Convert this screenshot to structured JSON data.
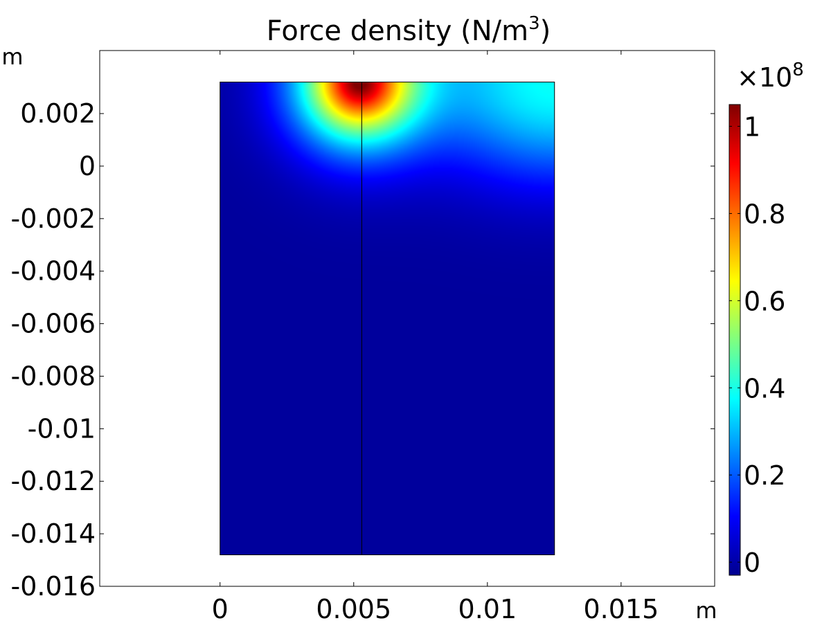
{
  "chart_data": {
    "type": "heatmap",
    "title": "Force density (N/m³)",
    "title_main": "Force density (N/m",
    "title_sup": "3",
    "title_end": ")",
    "xlabel": "m",
    "ylabel": "m",
    "xlim": [
      -0.0045,
      0.0185
    ],
    "ylim": [
      -0.016,
      0.0044
    ],
    "x_ticks": [
      0,
      0.005,
      0.01,
      0.015
    ],
    "x_tick_labels": [
      "0",
      "0.005",
      "0.01",
      "0.015"
    ],
    "y_ticks": [
      0.002,
      0,
      -0.002,
      -0.004,
      -0.006,
      -0.008,
      -0.01,
      -0.012,
      -0.014,
      -0.016
    ],
    "y_tick_labels": [
      "0.002",
      "0",
      "-0.002",
      "-0.004",
      "-0.006",
      "-0.008",
      "-0.01",
      "-0.012",
      "-0.014",
      "-0.016"
    ],
    "domain": {
      "x": [
        0,
        0.0125
      ],
      "y": [
        -0.0148,
        0.0032
      ],
      "divider_x": 0.0053
    },
    "hotspots": [
      {
        "x": 0.0052,
        "y": 0.0032,
        "value": 1.05
      },
      {
        "x": 0.0125,
        "y": 0.0032,
        "value": 0.38
      }
    ],
    "colorbar": {
      "colormap": "jet",
      "min": -0.03,
      "max": 1.05,
      "multiplier": "×10",
      "exponent": "8",
      "ticks": [
        0,
        0.2,
        0.4,
        0.6,
        0.8,
        1
      ],
      "tick_labels": [
        "0",
        "0.2",
        "0.4",
        "0.6",
        "0.8",
        "1"
      ]
    },
    "grid": false
  }
}
